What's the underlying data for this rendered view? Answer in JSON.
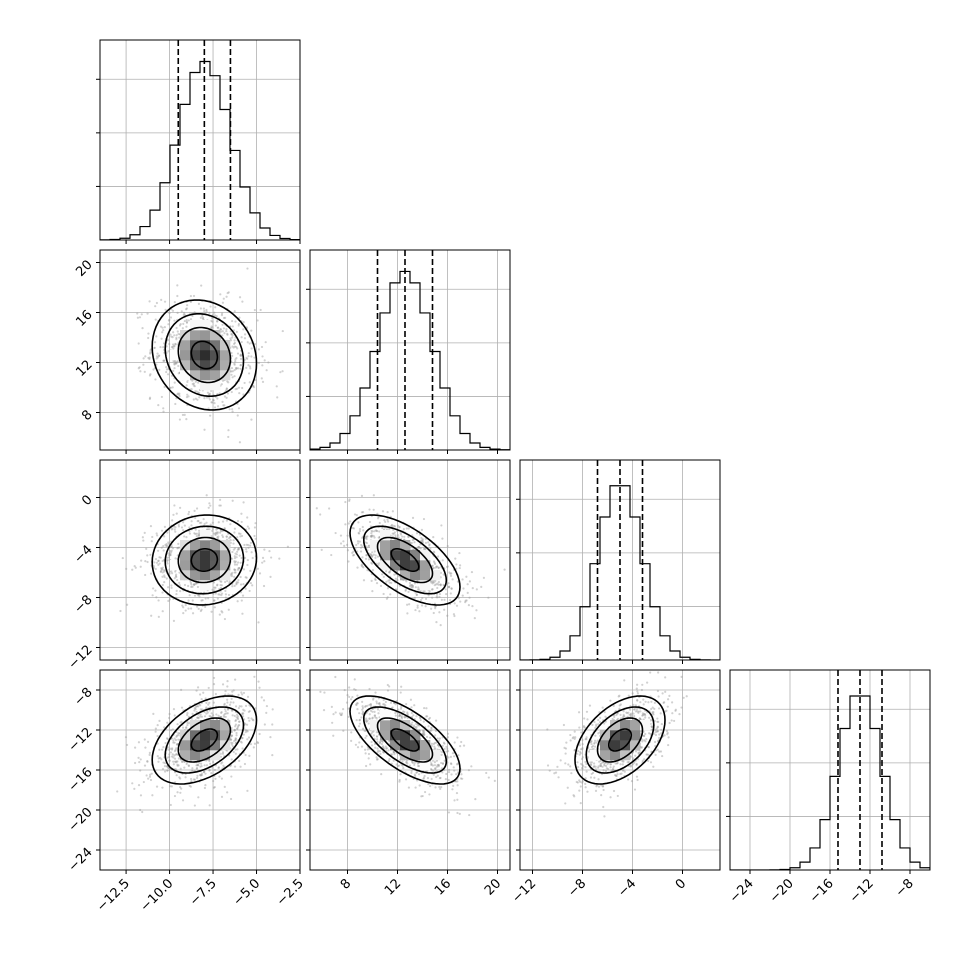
{
  "chart_data": {
    "type": "corner",
    "n_parameters": 4,
    "grid": true,
    "parameters": [
      {
        "index": 0,
        "range": [
          -14.0,
          -2.5
        ],
        "ticks": [
          -12.5,
          -10.0,
          -7.5,
          -5.0,
          -2.5
        ],
        "tick_labels": [
          "−12.5",
          "−10.0",
          "−7.5",
          "−5.0",
          "−2.5"
        ],
        "mean": -8.0,
        "std": 1.5,
        "quantiles": [
          -9.5,
          -8.0,
          -6.5
        ]
      },
      {
        "index": 1,
        "range": [
          5.0,
          21.0
        ],
        "ticks": [
          8,
          12,
          16,
          20
        ],
        "tick_labels": [
          "8",
          "12",
          "16",
          "20"
        ],
        "mean": 12.6,
        "std": 2.2,
        "quantiles": [
          10.4,
          12.6,
          14.8
        ]
      },
      {
        "index": 2,
        "range": [
          -13.0,
          3.0
        ],
        "ticks": [
          -12,
          -8,
          -4,
          0
        ],
        "tick_labels": [
          "−12",
          "−8",
          "−4",
          "0"
        ],
        "mean": -5.0,
        "std": 1.8,
        "quantiles": [
          -6.8,
          -5.0,
          -3.2
        ]
      },
      {
        "index": 3,
        "range": [
          -26.0,
          -6.0
        ],
        "ticks": [
          -24,
          -20,
          -16,
          -12,
          -8
        ],
        "tick_labels": [
          "−24",
          "−20",
          "−16",
          "−12",
          "−8"
        ],
        "mean": -13.0,
        "std": 2.2,
        "quantiles": [
          -15.2,
          -13.0,
          -10.8
        ]
      }
    ],
    "correlations": [
      {
        "pair": [
          0,
          1
        ],
        "rho": -0.15
      },
      {
        "pair": [
          0,
          2
        ],
        "rho": 0.05
      },
      {
        "pair": [
          0,
          3
        ],
        "rho": 0.45
      },
      {
        "pair": [
          1,
          2
        ],
        "rho": -0.6
      },
      {
        "pair": [
          1,
          3
        ],
        "rho": -0.65
      },
      {
        "pair": [
          2,
          3
        ],
        "rho": 0.45
      }
    ],
    "contour_levels_sigma": [
      0.5,
      1.0,
      1.5,
      2.0
    ],
    "histogram_bins": 20
  }
}
